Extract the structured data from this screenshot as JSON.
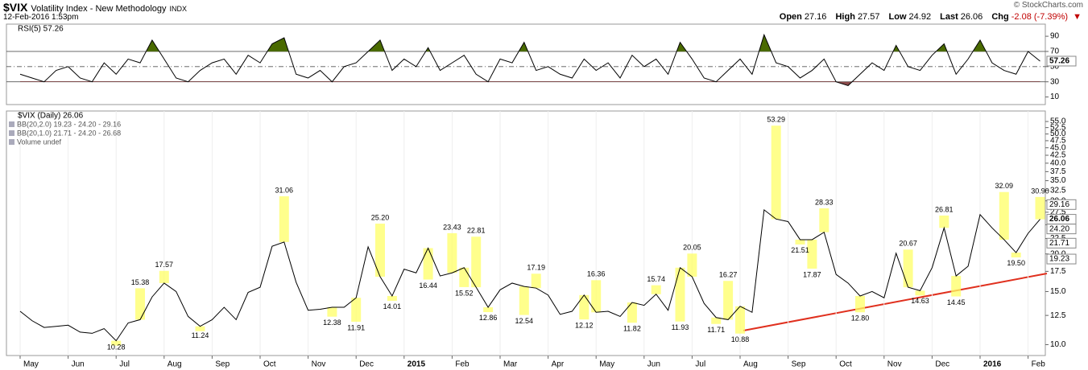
{
  "header": {
    "symbol": "$VIX",
    "name": "Volatility Index - New Methodology",
    "exchange": "INDX",
    "date": "12-Feb-2016 1:53pm",
    "copyright": "© StockCharts.com",
    "quote": [
      {
        "label": "Open",
        "value": 27.16
      },
      {
        "label": "High",
        "value": 27.57
      },
      {
        "label": "Low",
        "value": 24.92
      },
      {
        "label": "Last",
        "value": 26.06
      }
    ],
    "change_label": "Chg",
    "change": "-2.08 (-7.39%)"
  },
  "chart_data": [
    {
      "type": "line",
      "title": "RSI(5) 57.26",
      "series": [
        {
          "name": "RSI(5)",
          "color": "#000000",
          "values": [
            40,
            35,
            30,
            45,
            50,
            35,
            30,
            55,
            40,
            60,
            55,
            85,
            60,
            35,
            30,
            45,
            55,
            60,
            40,
            65,
            55,
            80,
            88,
            40,
            35,
            45,
            30,
            50,
            55,
            70,
            85,
            45,
            60,
            50,
            75,
            45,
            55,
            65,
            40,
            30,
            60,
            55,
            82,
            45,
            50,
            40,
            35,
            60,
            45,
            55,
            35,
            65,
            50,
            60,
            40,
            82,
            60,
            35,
            30,
            45,
            60,
            40,
            92,
            55,
            50,
            35,
            45,
            60,
            30,
            25,
            40,
            55,
            45,
            78,
            50,
            45,
            65,
            80,
            40,
            60,
            85,
            55,
            45,
            40,
            70,
            57.26
          ]
        }
      ],
      "ylim": [
        0,
        106
      ],
      "yticks": [
        10,
        30,
        50,
        70,
        90
      ],
      "reference_lines": [
        70,
        30
      ],
      "midline": 50,
      "overbought_color": "#4a6a00",
      "oversold_color": "#8b4a4a",
      "tags": [
        57.26
      ]
    },
    {
      "type": "line",
      "title": "$VIX (Daily) 26.06",
      "log": true,
      "legend": [
        "BB(20,2.0) 19.23 - 24.20 - 29.16",
        "BB(20,1.0) 21.71 - 24.20 - 26.68",
        "Volume undef"
      ],
      "categories": [
        "May",
        null,
        null,
        null,
        "Jun",
        null,
        null,
        null,
        "Jul",
        null,
        null,
        null,
        "Aug",
        null,
        null,
        null,
        "Sep",
        null,
        null,
        null,
        "Oct",
        null,
        null,
        null,
        "Nov",
        null,
        null,
        null,
        "Dec",
        null,
        null,
        null,
        "2015",
        null,
        null,
        null,
        "Feb",
        null,
        null,
        null,
        "Mar",
        null,
        null,
        null,
        "Apr",
        null,
        null,
        null,
        "May",
        null,
        null,
        null,
        "Jun",
        null,
        null,
        null,
        "Jul",
        null,
        null,
        null,
        "Aug",
        null,
        null,
        null,
        "Sep",
        null,
        null,
        null,
        "Oct",
        null,
        null,
        null,
        "Nov",
        null,
        null,
        null,
        "Dec",
        null,
        null,
        null,
        "2016",
        null,
        null,
        null,
        "Feb",
        null
      ],
      "series": [
        {
          "name": "$VIX (Daily) 26.06",
          "color": "#000000",
          "values": [
            12.9,
            12.0,
            11.4,
            11.5,
            11.6,
            11.0,
            10.9,
            11.3,
            10.3,
            11.8,
            12.1,
            14.4,
            16.0,
            15.0,
            12.4,
            11.5,
            12.1,
            13.3,
            12.1,
            14.9,
            15.5,
            21.2,
            21.9,
            16.1,
            13.0,
            13.1,
            13.3,
            13.3,
            14.3,
            21.1,
            16.8,
            14.5,
            17.8,
            17.3,
            20.9,
            16.9,
            17.3,
            18.0,
            15.5,
            13.3,
            15.2,
            16.0,
            15.6,
            15.4,
            14.6,
            12.6,
            12.9,
            14.6,
            12.8,
            12.9,
            12.4,
            13.8,
            13.5,
            14.7,
            13.0,
            18.0,
            16.8,
            13.7,
            12.3,
            12.1,
            13.4,
            12.8,
            28.0,
            26.1,
            25.6,
            22.3,
            22.3,
            23.6,
            17.1,
            16.0,
            14.5,
            15.0,
            14.3,
            20.1,
            15.5,
            15.1,
            18.0,
            24.4,
            16.9,
            18.2,
            27.0,
            24.4,
            22.3,
            20.2,
            23.4,
            26.06
          ]
        }
      ],
      "annotations": {
        "highlight": "#ffff66",
        "values": [
          null,
          null,
          null,
          null,
          null,
          null,
          null,
          null,
          10.28,
          null,
          15.38,
          null,
          17.57,
          null,
          null,
          11.24,
          null,
          null,
          null,
          null,
          null,
          null,
          31.06,
          null,
          null,
          null,
          12.38,
          null,
          11.91,
          null,
          25.2,
          14.01,
          null,
          null,
          16.44,
          null,
          23.43,
          15.52,
          22.81,
          12.86,
          null,
          null,
          12.54,
          17.19,
          null,
          null,
          null,
          12.12,
          16.36,
          null,
          null,
          11.82,
          null,
          15.74,
          null,
          11.93,
          20.05,
          null,
          11.71,
          16.27,
          10.88,
          null,
          null,
          53.29,
          null,
          21.51,
          17.87,
          28.33,
          null,
          null,
          12.8,
          null,
          null,
          null,
          20.67,
          14.63,
          null,
          26.81,
          14.45,
          null,
          null,
          null,
          32.09,
          19.5,
          null,
          30.9
        ],
        "value_labels": [
          null,
          null,
          null,
          null,
          null,
          null,
          null,
          null,
          "10.28",
          null,
          "15.38",
          null,
          "17.57",
          null,
          null,
          "11.24",
          null,
          null,
          null,
          null,
          null,
          null,
          "31.06",
          null,
          null,
          null,
          "12.38",
          null,
          "11.91",
          null,
          "25.20",
          "14.01",
          null,
          null,
          "16.44",
          null,
          "23.43",
          "15.52",
          "22.81",
          "12.86",
          null,
          null,
          "12.54",
          "17.19",
          null,
          null,
          null,
          "12.12",
          "16.36",
          null,
          null,
          "11.82",
          null,
          "15.74",
          null,
          "11.93",
          "20.05",
          null,
          "11.71",
          "16.27",
          "10.88",
          null,
          null,
          "53.29",
          null,
          "21.51",
          "17.87",
          "28.33",
          null,
          null,
          "12.80",
          null,
          null,
          null,
          "20.67",
          "14.63",
          null,
          "26.81",
          "14.45",
          null,
          null,
          null,
          "32.09",
          "19.50",
          null,
          "30.90"
        ]
      },
      "ylim": [
        9.2,
        59.6
      ],
      "yticks": [
        {
          "value": 10,
          "label": "10.0"
        },
        12.5,
        {
          "value": 15,
          "label": "15.0"
        },
        17.5,
        {
          "value": 20,
          "label": "20.0"
        },
        22.5,
        {
          "value": 25,
          "label": "25.0"
        },
        27.5,
        {
          "value": 30,
          "label": "30.0"
        },
        32.5,
        {
          "value": 35,
          "label": "35.0"
        },
        37.5,
        {
          "value": 40,
          "label": "40.0"
        },
        42.5,
        {
          "value": 45,
          "label": "45.0"
        },
        47.5,
        {
          "value": 50,
          "label": "50.0"
        },
        52.5,
        {
          "value": 55,
          "label": "55.0"
        }
      ],
      "tags": [
        {
          "value": 29.16,
          "label": "29.16"
        },
        {
          "value": 26.06,
          "label": "26.06"
        },
        {
          "value": 24.2,
          "label": "24.20"
        },
        {
          "value": 21.71,
          "label": "21.71"
        },
        {
          "value": 19.23,
          "label": "19.23"
        }
      ]
    }
  ]
}
